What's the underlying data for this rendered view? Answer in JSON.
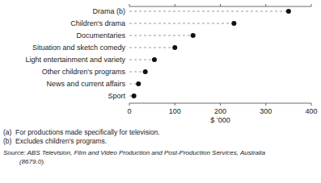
{
  "chart_data": {
    "type": "lollipop",
    "orientation": "horizontal",
    "categories": [
      "Sport",
      "News and current affairs",
      "Other children's programs",
      "Light entertainment and variety",
      "Situation and sketch comedy",
      "Documentaries",
      "Children's drama",
      "Drama (b)"
    ],
    "values": [
      10,
      20,
      35,
      55,
      100,
      140,
      230,
      350
    ],
    "xlim": [
      0,
      400
    ],
    "xticks": [
      0,
      100,
      200,
      300,
      400
    ],
    "x_label": "$ ’000",
    "color": "#111111",
    "marker": "circle",
    "line_style": "dashed",
    "grid": false,
    "annotations": [
      "(a)  For productions made specifically for television.",
      "(b)  Excludes children's programs.",
      "Source: ABS Television, Film and Video Production and Post-Production Services, Australia",
      "         (8679.0)."
    ]
  }
}
